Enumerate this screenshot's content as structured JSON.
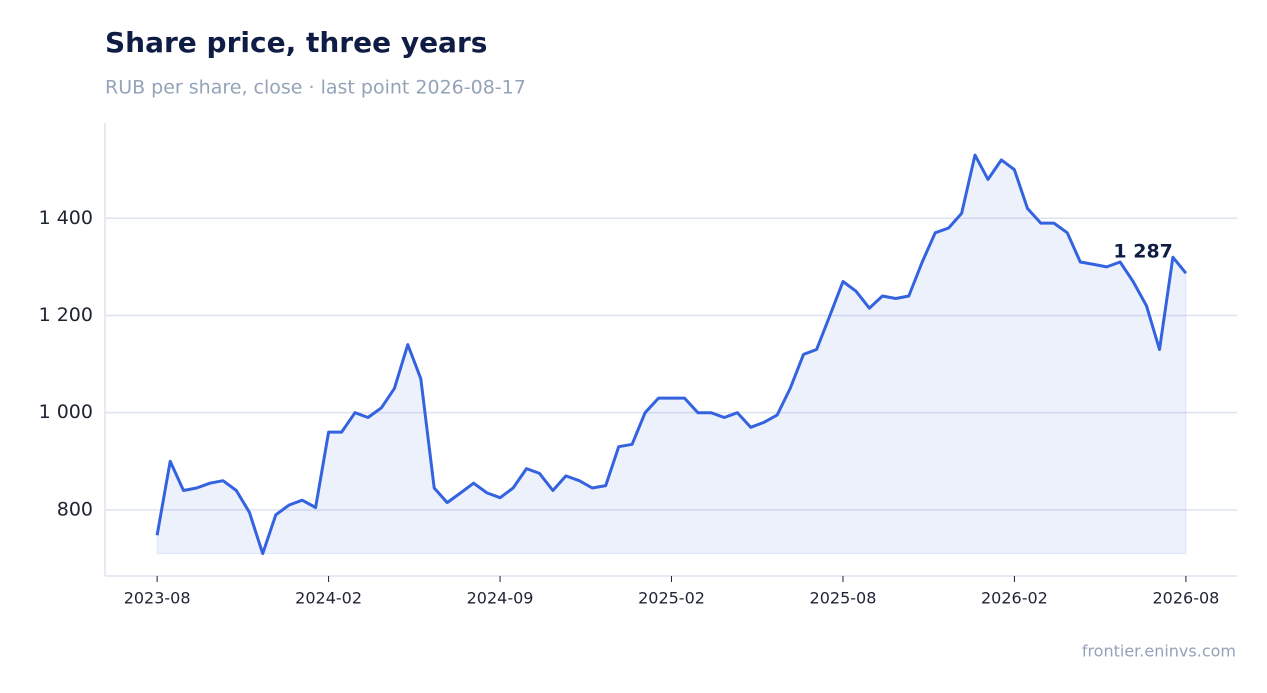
{
  "chart_data": {
    "type": "line",
    "title": "Share price, three years",
    "subtitle": "RUB per share, close · last point 2026-08-17",
    "source": "frontier.eninvs.com",
    "x": [
      2023.625,
      2023.663,
      2023.702,
      2023.74,
      2023.779,
      2023.817,
      2023.856,
      2023.894,
      2023.933,
      2023.971,
      2024.01,
      2024.048,
      2024.087,
      2024.125,
      2024.163,
      2024.202,
      2024.24,
      2024.279,
      2024.317,
      2024.356,
      2024.394,
      2024.433,
      2024.471,
      2024.51,
      2024.548,
      2024.587,
      2024.625,
      2024.663,
      2024.702,
      2024.74,
      2024.779,
      2024.817,
      2024.856,
      2024.894,
      2024.933,
      2024.971,
      2025.01,
      2025.048,
      2025.087,
      2025.125,
      2025.163,
      2025.202,
      2025.24,
      2025.279,
      2025.317,
      2025.356,
      2025.394,
      2025.433,
      2025.471,
      2025.51,
      2025.548,
      2025.587,
      2025.625,
      2025.663,
      2025.702,
      2025.74,
      2025.779,
      2025.817,
      2025.856,
      2025.894,
      2025.933,
      2025.971,
      2026.01,
      2026.048,
      2026.087,
      2026.125,
      2026.163,
      2026.202,
      2026.24,
      2026.279,
      2026.317,
      2026.356,
      2026.394,
      2026.433,
      2026.471,
      2026.51,
      2026.548,
      2026.587,
      2026.625
    ],
    "series": [
      {
        "name": "Close",
        "color": "#3463e0",
        "values": [
          748,
          900,
          840,
          845,
          855,
          860,
          840,
          795,
          710,
          790,
          810,
          820,
          805,
          960,
          960,
          1000,
          990,
          1010,
          1050,
          1140,
          1070,
          845,
          815,
          835,
          855,
          835,
          825,
          845,
          885,
          875,
          840,
          870,
          860,
          845,
          850,
          930,
          935,
          1000,
          1030,
          1030,
          1030,
          1000,
          1000,
          990,
          1000,
          970,
          980,
          995,
          1050,
          1120,
          1130,
          1200,
          1270,
          1250,
          1215,
          1240,
          1235,
          1240,
          1310,
          1370,
          1380,
          1410,
          1530,
          1480,
          1520,
          1500,
          1420,
          1390,
          1390,
          1370,
          1310,
          1305,
          1300,
          1310,
          1270,
          1220,
          1130,
          1320,
          1287
        ],
        "value_labels": [
          null,
          null,
          null,
          null,
          null,
          null,
          null,
          null,
          null,
          null,
          null,
          null,
          null,
          null,
          null,
          null,
          null,
          null,
          null,
          null,
          null,
          null,
          null,
          null,
          null,
          null,
          null,
          null,
          null,
          null,
          null,
          null,
          null,
          null,
          null,
          null,
          null,
          null,
          null,
          null,
          null,
          null,
          null,
          null,
          null,
          null,
          null,
          null,
          null,
          null,
          null,
          null,
          null,
          null,
          null,
          null,
          null,
          null,
          null,
          null,
          null,
          null,
          null,
          null,
          null,
          null,
          null,
          null,
          null,
          null,
          null,
          null,
          null,
          null,
          null,
          null,
          null,
          null,
          "1 287"
        ]
      }
    ],
    "xlim": [
      2023.473,
      2026.774
    ],
    "xticks": [
      {
        "value": 2023.625,
        "label": "2023-08"
      },
      {
        "value": 2024.125,
        "label": "2024-02"
      },
      {
        "value": 2024.625,
        "label": "2024-09"
      },
      {
        "value": 2025.125,
        "label": "2025-02"
      },
      {
        "value": 2025.625,
        "label": "2025-08"
      },
      {
        "value": 2026.125,
        "label": "2026-02"
      },
      {
        "value": 2026.625,
        "label": "2026-08"
      }
    ],
    "ylim": [
      664,
      1596
    ],
    "yticks": [
      800,
      {
        "value": 1000,
        "label": "1 000"
      },
      {
        "value": 1200,
        "label": "1 200"
      },
      {
        "value": 1400,
        "label": "1 400"
      }
    ],
    "grid": true
  }
}
